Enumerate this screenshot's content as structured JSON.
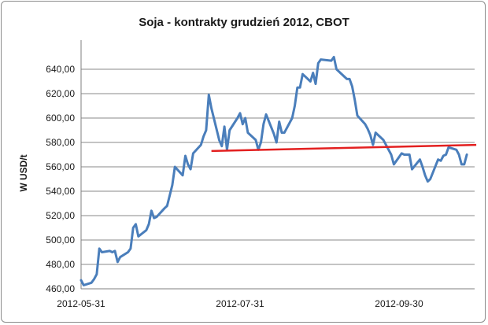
{
  "chart_data": {
    "type": "line",
    "title": "Soja - kontrakty grudzień 2012, CBOT",
    "ylabel": "W USD/t",
    "xlabel": "",
    "ylim": [
      460,
      660
    ],
    "yticks": [
      "460,00",
      "480,00",
      "500,00",
      "520,00",
      "540,00",
      "560,00",
      "580,00",
      "600,00",
      "620,00",
      "640,00"
    ],
    "xticks": [
      "2012-05-31",
      "2012-07-31",
      "2012-09-30"
    ],
    "grid": "horizontal",
    "legend": "none",
    "series": [
      {
        "color": "#4a7ebb",
        "x": [
          "2012-05-31",
          "2012-06-01",
          "2012-06-04",
          "2012-06-05",
          "2012-06-06",
          "2012-06-07",
          "2012-06-08",
          "2012-06-11",
          "2012-06-12",
          "2012-06-13",
          "2012-06-14",
          "2012-06-15",
          "2012-06-18",
          "2012-06-19",
          "2012-06-20",
          "2012-06-21",
          "2012-06-22",
          "2012-06-25",
          "2012-06-26",
          "2012-06-27",
          "2012-06-28",
          "2012-06-29",
          "2012-07-02",
          "2012-07-03",
          "2012-07-05",
          "2012-07-06",
          "2012-07-09",
          "2012-07-10",
          "2012-07-11",
          "2012-07-12",
          "2012-07-13",
          "2012-07-16",
          "2012-07-17",
          "2012-07-18",
          "2012-07-19",
          "2012-07-20",
          "2012-07-23",
          "2012-07-24",
          "2012-07-25",
          "2012-07-26",
          "2012-07-27",
          "2012-07-30",
          "2012-07-31",
          "2012-08-01",
          "2012-08-02",
          "2012-08-03",
          "2012-08-06",
          "2012-08-07",
          "2012-08-08",
          "2012-08-09",
          "2012-08-10",
          "2012-08-13",
          "2012-08-14",
          "2012-08-15",
          "2012-08-16",
          "2012-08-17",
          "2012-08-20",
          "2012-08-21",
          "2012-08-22",
          "2012-08-23",
          "2012-08-24",
          "2012-08-27",
          "2012-08-28",
          "2012-08-29",
          "2012-08-30",
          "2012-08-31",
          "2012-09-04",
          "2012-09-05",
          "2012-09-06",
          "2012-09-07",
          "2012-09-10",
          "2012-09-11",
          "2012-09-12",
          "2012-09-13",
          "2012-09-14",
          "2012-09-17",
          "2012-09-18",
          "2012-09-19",
          "2012-09-20",
          "2012-09-21",
          "2012-09-24",
          "2012-09-25",
          "2012-09-26",
          "2012-09-27",
          "2012-09-28",
          "2012-10-01",
          "2012-10-02",
          "2012-10-03",
          "2012-10-04",
          "2012-10-05",
          "2012-10-08",
          "2012-10-09",
          "2012-10-10",
          "2012-10-11",
          "2012-10-12",
          "2012-10-15",
          "2012-10-16",
          "2012-10-17",
          "2012-10-18",
          "2012-10-19",
          "2012-10-22",
          "2012-10-23",
          "2012-10-24",
          "2012-10-25",
          "2012-10-26"
        ],
        "y": [
          467,
          463,
          465,
          468,
          472,
          493,
          490,
          491,
          490,
          491,
          482,
          486,
          490,
          493,
          510,
          513,
          503,
          508,
          513,
          524,
          518,
          519,
          526,
          528,
          545,
          560,
          553,
          569,
          562,
          558,
          571,
          578,
          585,
          590,
          619,
          608,
          582,
          577,
          593,
          574,
          590,
          600,
          604,
          595,
          600,
          588,
          582,
          574,
          580,
          595,
          603,
          587,
          580,
          597,
          588,
          588,
          600,
          610,
          625,
          625,
          636,
          630,
          637,
          628,
          645,
          648,
          647,
          650,
          640,
          638,
          632,
          632,
          626,
          615,
          602,
          595,
          591,
          586,
          578,
          588,
          582,
          578,
          574,
          570,
          562,
          571,
          570,
          570,
          570,
          558,
          566,
          560,
          553,
          548,
          550,
          566,
          565,
          569,
          570,
          576,
          574,
          570,
          562,
          562,
          570
        ]
      }
    ],
    "trend_line": {
      "color": "#e32020",
      "x": [
        "2012-07-20",
        "2012-10-26"
      ],
      "y": [
        573,
        578
      ]
    }
  }
}
